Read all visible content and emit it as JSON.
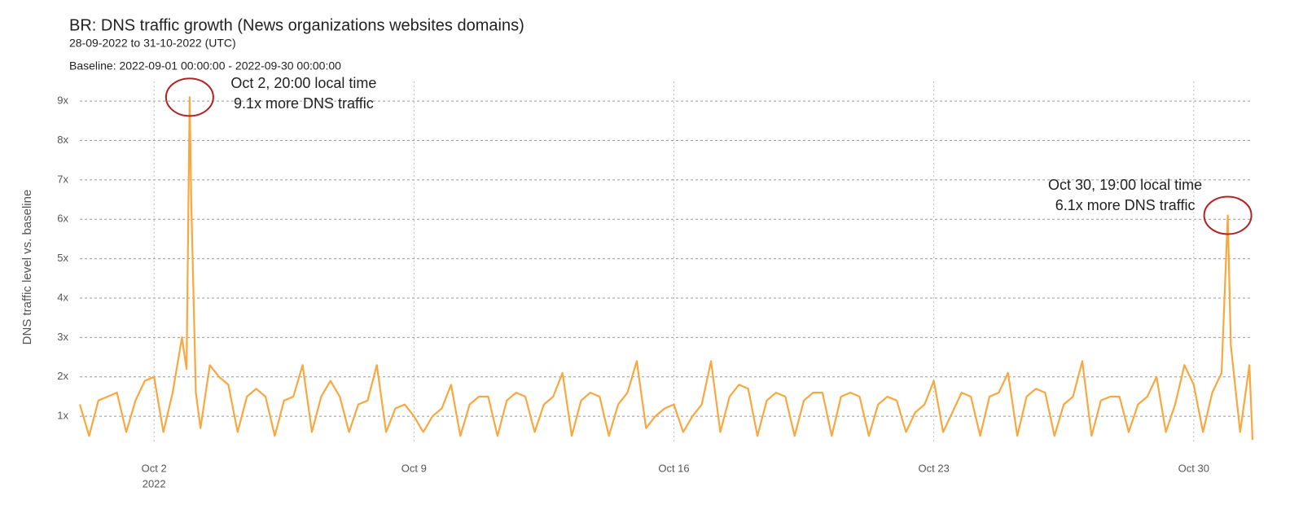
{
  "chart_data": {
    "type": "line",
    "title": "BR: DNS traffic growth (News organizations websites domains)",
    "subtitle": "28-09-2022 to 31-10-2022 (UTC)",
    "baseline": "Baseline: 2022-09-01 00:00:00 - 2022-09-30 00:00:00",
    "ylabel": "DNS traffic level vs. baseline",
    "x_year": "2022",
    "xlim": [
      "2022-09-30T00:00",
      "2022-10-31T14:00"
    ],
    "xticks": [
      {
        "value": "2022-10-02T00:00",
        "label": "Oct 2"
      },
      {
        "value": "2022-10-09T00:00",
        "label": "Oct 9"
      },
      {
        "value": "2022-10-16T00:00",
        "label": "Oct 16"
      },
      {
        "value": "2022-10-23T00:00",
        "label": "Oct 23"
      },
      {
        "value": "2022-10-30T00:00",
        "label": "Oct 30"
      }
    ],
    "ylim": [
      0.3,
      9.5
    ],
    "yticks": [
      {
        "value": 1,
        "label": "1x"
      },
      {
        "value": 2,
        "label": "2x"
      },
      {
        "value": 3,
        "label": "3x"
      },
      {
        "value": 4,
        "label": "4x"
      },
      {
        "value": 5,
        "label": "5x"
      },
      {
        "value": 6,
        "label": "6x"
      },
      {
        "value": 7,
        "label": "7x"
      },
      {
        "value": 8,
        "label": "8x"
      },
      {
        "value": 9,
        "label": "9x"
      }
    ],
    "grid": true,
    "annotations": [
      [
        "Oct 2, 20:00 local time",
        "9.1x more DNS traffic"
      ],
      [
        "Oct 30, 19:00 local time",
        "6.1x more DNS traffic"
      ]
    ],
    "x": [
      "2022-09-30T00:00",
      "2022-09-30T06:00",
      "2022-09-30T12:00",
      "2022-09-30T18:00",
      "2022-10-01T00:00",
      "2022-10-01T06:00",
      "2022-10-01T12:00",
      "2022-10-01T18:00",
      "2022-10-02T00:00",
      "2022-10-02T06:00",
      "2022-10-02T12:00",
      "2022-10-02T18:00",
      "2022-10-02T21:00",
      "2022-10-02T23:00",
      "2022-10-03T00:00",
      "2022-10-03T03:00",
      "2022-10-03T06:00",
      "2022-10-03T12:00",
      "2022-10-03T18:00",
      "2022-10-04T00:00",
      "2022-10-04T06:00",
      "2022-10-04T12:00",
      "2022-10-04T18:00",
      "2022-10-05T00:00",
      "2022-10-05T06:00",
      "2022-10-05T12:00",
      "2022-10-05T18:00",
      "2022-10-06T00:00",
      "2022-10-06T06:00",
      "2022-10-06T12:00",
      "2022-10-06T18:00",
      "2022-10-07T00:00",
      "2022-10-07T06:00",
      "2022-10-07T12:00",
      "2022-10-07T18:00",
      "2022-10-08T00:00",
      "2022-10-08T06:00",
      "2022-10-08T12:00",
      "2022-10-08T18:00",
      "2022-10-09T00:00",
      "2022-10-09T06:00",
      "2022-10-09T12:00",
      "2022-10-09T18:00",
      "2022-10-10T00:00",
      "2022-10-10T06:00",
      "2022-10-10T12:00",
      "2022-10-10T18:00",
      "2022-10-11T00:00",
      "2022-10-11T06:00",
      "2022-10-11T12:00",
      "2022-10-11T18:00",
      "2022-10-12T00:00",
      "2022-10-12T06:00",
      "2022-10-12T12:00",
      "2022-10-12T18:00",
      "2022-10-13T00:00",
      "2022-10-13T06:00",
      "2022-10-13T12:00",
      "2022-10-13T18:00",
      "2022-10-14T00:00",
      "2022-10-14T06:00",
      "2022-10-14T12:00",
      "2022-10-14T18:00",
      "2022-10-15T00:00",
      "2022-10-15T06:00",
      "2022-10-15T12:00",
      "2022-10-15T18:00",
      "2022-10-16T00:00",
      "2022-10-16T06:00",
      "2022-10-16T12:00",
      "2022-10-16T18:00",
      "2022-10-17T00:00",
      "2022-10-17T06:00",
      "2022-10-17T12:00",
      "2022-10-17T18:00",
      "2022-10-18T00:00",
      "2022-10-18T06:00",
      "2022-10-18T12:00",
      "2022-10-18T18:00",
      "2022-10-19T00:00",
      "2022-10-19T06:00",
      "2022-10-19T12:00",
      "2022-10-19T18:00",
      "2022-10-20T00:00",
      "2022-10-20T06:00",
      "2022-10-20T12:00",
      "2022-10-20T18:00",
      "2022-10-21T00:00",
      "2022-10-21T06:00",
      "2022-10-21T12:00",
      "2022-10-21T18:00",
      "2022-10-22T00:00",
      "2022-10-22T06:00",
      "2022-10-22T12:00",
      "2022-10-22T18:00",
      "2022-10-23T00:00",
      "2022-10-23T06:00",
      "2022-10-23T12:00",
      "2022-10-23T18:00",
      "2022-10-24T00:00",
      "2022-10-24T06:00",
      "2022-10-24T12:00",
      "2022-10-24T18:00",
      "2022-10-25T00:00",
      "2022-10-25T06:00",
      "2022-10-25T12:00",
      "2022-10-25T18:00",
      "2022-10-26T00:00",
      "2022-10-26T06:00",
      "2022-10-26T12:00",
      "2022-10-26T18:00",
      "2022-10-27T00:00",
      "2022-10-27T06:00",
      "2022-10-27T12:00",
      "2022-10-27T18:00",
      "2022-10-28T00:00",
      "2022-10-28T06:00",
      "2022-10-28T12:00",
      "2022-10-28T18:00",
      "2022-10-29T00:00",
      "2022-10-29T06:00",
      "2022-10-29T12:00",
      "2022-10-29T18:00",
      "2022-10-30T00:00",
      "2022-10-30T06:00",
      "2022-10-30T12:00",
      "2022-10-30T18:00",
      "2022-10-30T22:00",
      "2022-10-31T00:00",
      "2022-10-31T06:00",
      "2022-10-31T12:00",
      "2022-10-31T14:00"
    ],
    "series": [
      {
        "color": "#f9a73e",
        "values": [
          1.3,
          0.5,
          1.4,
          1.5,
          1.6,
          0.6,
          1.4,
          1.9,
          2.0,
          0.6,
          1.6,
          3.0,
          2.2,
          9.1,
          6.5,
          1.6,
          0.7,
          2.3,
          2.0,
          1.8,
          0.6,
          1.5,
          1.7,
          1.5,
          0.5,
          1.4,
          1.5,
          2.3,
          0.6,
          1.5,
          1.9,
          1.5,
          0.6,
          1.3,
          1.4,
          2.3,
          0.6,
          1.2,
          1.3,
          1.0,
          0.6,
          1.0,
          1.2,
          1.8,
          0.5,
          1.3,
          1.5,
          1.5,
          0.5,
          1.4,
          1.6,
          1.5,
          0.6,
          1.3,
          1.5,
          2.1,
          0.5,
          1.4,
          1.6,
          1.5,
          0.5,
          1.3,
          1.6,
          2.4,
          0.7,
          1.0,
          1.2,
          1.3,
          0.6,
          1.0,
          1.3,
          2.4,
          0.6,
          1.5,
          1.8,
          1.7,
          0.5,
          1.4,
          1.6,
          1.5,
          0.5,
          1.4,
          1.6,
          1.6,
          0.5,
          1.5,
          1.6,
          1.5,
          0.5,
          1.3,
          1.5,
          1.4,
          0.6,
          1.1,
          1.3,
          1.9,
          0.6,
          1.1,
          1.6,
          1.5,
          0.5,
          1.5,
          1.6,
          2.1,
          0.5,
          1.5,
          1.7,
          1.6,
          0.5,
          1.3,
          1.5,
          2.4,
          0.5,
          1.4,
          1.5,
          1.5,
          0.6,
          1.3,
          1.5,
          2.0,
          0.6,
          1.3,
          2.3,
          1.8,
          0.6,
          1.6,
          2.1,
          6.1,
          2.8,
          0.6,
          2.3,
          0.4
        ]
      }
    ]
  }
}
